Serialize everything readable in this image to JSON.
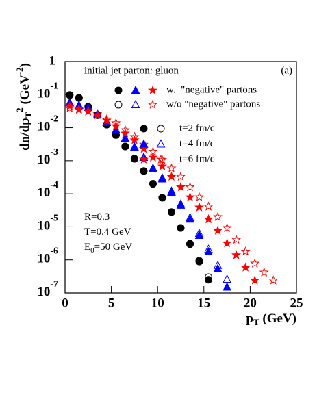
{
  "chart_data": {
    "type": "scatter",
    "title": "initial jet parton: gluon",
    "panel": "(a)",
    "xlabel": [
      "p",
      "T",
      " (GeV)"
    ],
    "ylabel": [
      "dn/dp",
      "T",
      "2",
      " (GeV",
      "-2",
      ")"
    ],
    "annotations": [
      [
        "R=0.3"
      ],
      [
        "T=0.4 GeV"
      ],
      [
        "E",
        "0",
        "=50 GeV"
      ]
    ],
    "legend": {
      "style_labels": [
        "w.  \"negative\" partons",
        "w/o \"negative\" partons"
      ],
      "time_labels": [
        "t=2 fm/c",
        "t=4 fm/c",
        "t=6 fm/c"
      ]
    },
    "log_y": true,
    "xlim": [
      0,
      25
    ],
    "xticks": [
      0,
      5,
      10,
      15,
      20,
      25
    ],
    "ylim": [
      1e-07,
      1
    ],
    "yticks": [
      1,
      {
        "value": 0.1,
        "label": "10",
        "exponent": "-1"
      },
      {
        "value": 0.01,
        "label": "10",
        "exponent": "-2"
      },
      {
        "value": 0.001,
        "label": "10",
        "exponent": "-3"
      },
      {
        "value": 0.0001,
        "label": "10",
        "exponent": "-4"
      },
      {
        "value": 1e-05,
        "label": "10",
        "exponent": "-5"
      },
      {
        "value": 1e-06,
        "label": "10",
        "exponent": "-6"
      },
      {
        "value": 1e-07,
        "label": "10",
        "exponent": "-7"
      }
    ],
    "series": [
      {
        "marker": "circle",
        "filled": true,
        "color": "#000000",
        "x": [
          0.5,
          1.5,
          2.5,
          3.5,
          4.5,
          5.5,
          6.5,
          7.5,
          8.5,
          9.5,
          10.5,
          11.5,
          12.5,
          13.5,
          14.5,
          15.5
        ],
        "values": [
          0.097,
          0.08,
          0.043,
          0.024,
          0.0124,
          0.006,
          0.0027,
          0.00115,
          0.00049,
          0.0002,
          7.6e-05,
          2.8e-05,
          9.3e-06,
          3e-06,
          8.9e-07,
          2.5e-07
        ]
      },
      {
        "marker": "triangle",
        "filled": true,
        "color": "#0000ff",
        "x": [
          0.5,
          1.5,
          2.5,
          3.5,
          4.5,
          5.5,
          6.5,
          7.5,
          8.5,
          9.5,
          10.5,
          11.5,
          12.5,
          13.5,
          14.5,
          15.5,
          16.5,
          17.5
        ],
        "values": [
          0.057,
          0.047,
          0.041,
          0.026,
          0.0144,
          0.0085,
          0.0048,
          0.0026,
          0.00126,
          0.00059,
          0.00028,
          0.00011,
          4.5e-05,
          1.7e-05,
          5.5e-06,
          1.75e-06,
          5.4e-07,
          1.5e-07
        ]
      },
      {
        "marker": "star",
        "filled": true,
        "color": "#ff0000",
        "x": [
          0.5,
          1.5,
          2.5,
          3.5,
          4.5,
          5.5,
          6.5,
          7.5,
          8.5,
          9.5,
          10.5,
          11.5,
          12.5,
          13.5,
          14.5,
          15.5,
          16.5,
          17.5,
          18.5,
          19.5,
          20.5
        ],
        "values": [
          0.045,
          0.037,
          0.032,
          0.024,
          0.0166,
          0.0113,
          0.0067,
          0.0042,
          0.0023,
          0.00126,
          0.00068,
          0.00033,
          0.00016,
          7.9e-05,
          3.9e-05,
          1.7e-05,
          7.7e-06,
          3.2e-06,
          1.4e-06,
          5.9e-07,
          2.4e-07
        ]
      },
      {
        "marker": "circle",
        "filled": false,
        "color": "#000000",
        "x": [
          0.5,
          1.5,
          2.5,
          3.5,
          4.5,
          5.5,
          6.5,
          7.5,
          8.5,
          9.5,
          10.5,
          11.5,
          12.5,
          13.5,
          14.5,
          15.5
        ],
        "values": [
          0.097,
          0.08,
          0.043,
          0.024,
          0.0124,
          0.006,
          0.0027,
          0.00115,
          0.00049,
          0.0002,
          7.6e-05,
          2.8e-05,
          9.3e-06,
          3.1e-06,
          9.4e-07,
          3e-07
        ]
      },
      {
        "marker": "triangle",
        "filled": false,
        "color": "#0000ff",
        "x": [
          0.5,
          1.5,
          2.5,
          3.5,
          4.5,
          5.5,
          6.5,
          7.5,
          8.5,
          9.5,
          10.5,
          11.5,
          12.5,
          13.5,
          14.5,
          15.5,
          16.5,
          17.5
        ],
        "values": [
          0.057,
          0.047,
          0.041,
          0.026,
          0.0144,
          0.0085,
          0.0048,
          0.0026,
          0.00126,
          0.00059,
          0.0003,
          0.00012,
          4.9e-05,
          1.9e-05,
          6.3e-06,
          2.1e-06,
          6.8e-07,
          2.6e-07
        ]
      },
      {
        "marker": "star",
        "filled": false,
        "color": "#ff0000",
        "x": [
          0.5,
          1.5,
          2.5,
          3.5,
          4.5,
          5.5,
          6.5,
          7.5,
          8.5,
          9.5,
          10.5,
          11.5,
          12.5,
          13.5,
          14.5,
          15.5,
          16.5,
          17.5,
          18.5,
          19.5,
          20.5,
          21.5,
          22.5
        ],
        "values": [
          0.039,
          0.035,
          0.031,
          0.026,
          0.018,
          0.0138,
          0.0085,
          0.0053,
          0.0031,
          0.0019,
          0.00105,
          0.00059,
          0.00033,
          0.00016,
          7.9e-05,
          4.1e-05,
          2e-05,
          9.3e-06,
          4.1e-06,
          1.8e-06,
          7.8e-07,
          4.2e-07,
          2.4e-07
        ]
      }
    ]
  }
}
